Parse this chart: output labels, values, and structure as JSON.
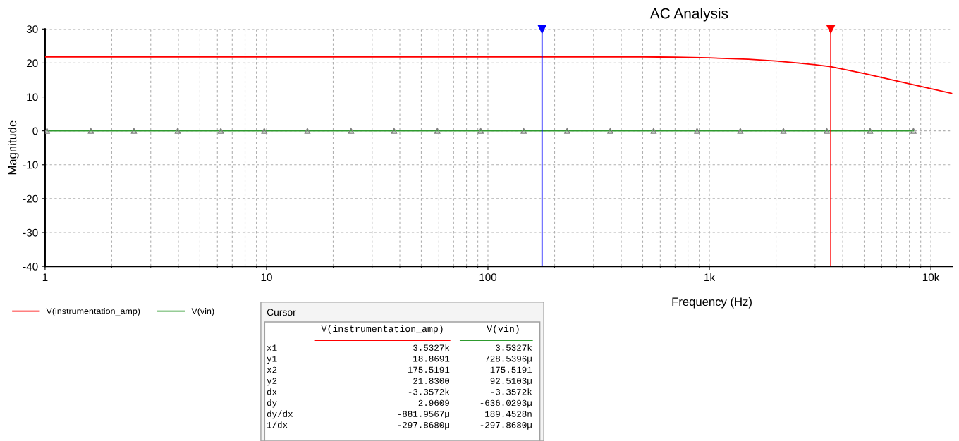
{
  "chart_data": {
    "type": "line",
    "title": "AC Analysis",
    "xlabel": "Frequency (Hz)",
    "ylabel": "Magnitude",
    "log": "x",
    "xlim": [
      1,
      12500
    ],
    "xticks": [
      1,
      10,
      100,
      {
        "value": 1000,
        "label": "1k"
      },
      {
        "value": 10000,
        "label": "10k"
      }
    ],
    "ylim": [
      -40,
      30
    ],
    "yticks": [
      -40,
      -30,
      -20,
      -10,
      0,
      10,
      20,
      30
    ],
    "grid": true,
    "legend": "bottom left",
    "line_style": "solid",
    "series": [
      {
        "name": "V(instrumentation_amp)",
        "color": "#ff0000",
        "marker": "none",
        "x": [
          1,
          10,
          100,
          300,
          500,
          700,
          1000,
          1500,
          2000,
          2500,
          3000,
          3533,
          5000,
          7000,
          10000,
          12500
        ],
        "values": [
          21.8,
          21.8,
          21.8,
          21.8,
          21.8,
          21.7,
          21.5,
          21.1,
          20.6,
          20.0,
          19.5,
          18.9,
          16.9,
          14.7,
          12.4,
          11.0
        ]
      },
      {
        "name": "V(vin)",
        "color": "#2e9a2e",
        "marker": "triangle",
        "x": [
          1.02,
          1.61,
          2.52,
          3.97,
          6.22,
          9.77,
          15.3,
          24.1,
          37.7,
          59.1,
          92.8,
          145,
          228,
          357,
          560,
          880,
          1380,
          2160,
          3390,
          5320,
          8350
        ],
        "values": [
          0,
          0,
          0,
          0,
          0,
          0,
          0,
          0,
          0,
          0,
          0,
          0,
          0,
          0,
          0,
          0,
          0,
          0,
          0,
          0,
          0
        ]
      }
    ],
    "ref_lines": [
      {
        "axis": "x",
        "value": 175.5191,
        "color": "#0000ff"
      },
      {
        "axis": "x",
        "value": 3532.7,
        "color": "#ff0000"
      }
    ],
    "annotations": [
      "Cursor",
      "V(instrumentation_amp)",
      "V(vin)",
      "x1",
      "3.5327k",
      "3.5327k",
      "y1",
      "18.8691",
      "728.5396µ",
      "x2",
      "175.5191",
      "175.5191",
      "y2",
      "21.8300",
      "92.5103µ",
      "dx",
      "-3.3572k",
      "-3.3572k",
      "dy",
      "2.9609",
      "-636.0293µ",
      "dy/dx",
      "-881.9567µ",
      "189.4528n",
      "1/dx",
      "-297.8680µ",
      "-297.8680µ"
    ]
  }
}
